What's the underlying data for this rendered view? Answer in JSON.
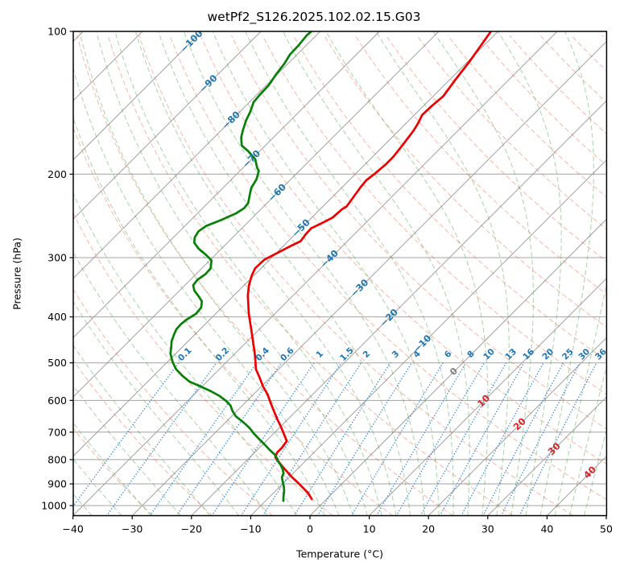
{
  "chart_data": {
    "type": "skewt-log-p",
    "title": "wetPf2_S126.2025.102.02.15.G03",
    "xlabel": "Temperature (°C)",
    "ylabel": "Pressure (hPa)",
    "xlim": [
      -40,
      50
    ],
    "ylim": [
      1050,
      100
    ],
    "skew_deg": 45,
    "grid": true,
    "x_ticks": [
      {
        "value": -40,
        "label": "−40"
      },
      {
        "value": -30,
        "label": "−30"
      },
      {
        "value": -20,
        "label": "−20"
      },
      {
        "value": -10,
        "label": "−10"
      },
      {
        "value": 0,
        "label": "0"
      },
      {
        "value": 10,
        "label": "10"
      },
      {
        "value": 20,
        "label": "20"
      },
      {
        "value": 30,
        "label": "30"
      },
      {
        "value": 40,
        "label": "40"
      },
      {
        "value": 50,
        "label": "50"
      }
    ],
    "y_ticks": [
      {
        "value": 100,
        "label": "100"
      },
      {
        "value": 200,
        "label": "200"
      },
      {
        "value": 300,
        "label": "300"
      },
      {
        "value": 400,
        "label": "400"
      },
      {
        "value": 500,
        "label": "500"
      },
      {
        "value": 600,
        "label": "600"
      },
      {
        "value": 700,
        "label": "700"
      },
      {
        "value": 800,
        "label": "800"
      },
      {
        "value": 900,
        "label": "900"
      },
      {
        "value": 1000,
        "label": "1000"
      }
    ],
    "isotherms": {
      "t_start": -130,
      "t_end": 60,
      "t_step": 10,
      "color": "#a0a0a0",
      "labels": [
        {
          "t": -100,
          "p": 105,
          "label": "−100",
          "color": "#1f77b4"
        },
        {
          "t": -90,
          "p": 129,
          "label": "−90",
          "color": "#1f77b4"
        },
        {
          "t": -80,
          "p": 154,
          "label": "−80",
          "color": "#1f77b4"
        },
        {
          "t": -70,
          "p": 186,
          "label": "−70",
          "color": "#1f77b4"
        },
        {
          "t": -60,
          "p": 219,
          "label": "−60",
          "color": "#1f77b4"
        },
        {
          "t": -50,
          "p": 260,
          "label": "−50",
          "color": "#1f77b4"
        },
        {
          "t": -40,
          "p": 302,
          "label": "−40",
          "color": "#1f77b4"
        },
        {
          "t": -30,
          "p": 348,
          "label": "−30",
          "color": "#1f77b4"
        },
        {
          "t": -20,
          "p": 402,
          "label": "−20",
          "color": "#1f77b4"
        },
        {
          "t": -10,
          "p": 456,
          "label": "−10",
          "color": "#1f77b4"
        },
        {
          "t": 0,
          "p": 522,
          "label": "0",
          "color": "#808080"
        },
        {
          "t": 10,
          "p": 602,
          "label": "10",
          "color": "#d62728"
        },
        {
          "t": 20,
          "p": 674,
          "label": "20",
          "color": "#d62728"
        },
        {
          "t": 30,
          "p": 760,
          "label": "30",
          "color": "#d62728"
        },
        {
          "t": 40,
          "p": 852,
          "label": "40",
          "color": "#d62728"
        }
      ]
    },
    "dry_adiabats": {
      "theta_start": -30,
      "theta_end": 220,
      "theta_step": 10,
      "color": "rgba(237,95,62,0.42)"
    },
    "moist_adiabats": {
      "t0": [
        -40,
        -35,
        -30,
        -25,
        -20,
        -15,
        -10,
        -5,
        0,
        2.5,
        5,
        7.5,
        10,
        12.5,
        15,
        17.5,
        20,
        22.5,
        25,
        27.5,
        30,
        32.5,
        35,
        37.5,
        40,
        42.5,
        45
      ],
      "color": "rgba(66,158,66,0.42)"
    },
    "mixing_lines": {
      "values": [
        0.1,
        0.2,
        0.4,
        0.6,
        1,
        1.5,
        2,
        3,
        4,
        6,
        8,
        10,
        13,
        16,
        20,
        25,
        30,
        36
      ],
      "labels": [
        "0.1",
        "0.2",
        "0.4",
        "0.6",
        "1",
        "1.5",
        "2",
        "3",
        "4",
        "6",
        "8",
        "10",
        "13",
        "16",
        "20",
        "25",
        "30",
        "36"
      ],
      "p_bottom": 1050,
      "p_top": 500,
      "label_p": 480,
      "color": "#4592d2",
      "label_color": "#1f77b4"
    },
    "temperature_profile": {
      "name": "temperature",
      "color": "#ee0000",
      "points": [
        [
          100,
          -51.2
        ],
        [
          106,
          -50.6
        ],
        [
          116,
          -49.7
        ],
        [
          127,
          -49.0
        ],
        [
          137,
          -48.3
        ],
        [
          144,
          -48.6
        ],
        [
          150,
          -48.7
        ],
        [
          156,
          -48.0
        ],
        [
          162,
          -47.5
        ],
        [
          174,
          -46.9
        ],
        [
          184,
          -46.5
        ],
        [
          191,
          -46.5
        ],
        [
          200,
          -46.8
        ],
        [
          206,
          -47.1
        ],
        [
          213,
          -46.9
        ],
        [
          222,
          -46.5
        ],
        [
          234,
          -46.0
        ],
        [
          237,
          -46.3
        ],
        [
          247,
          -46.5
        ],
        [
          254,
          -47.4
        ],
        [
          260,
          -48.3
        ],
        [
          268,
          -48.2
        ],
        [
          277,
          -47.9
        ],
        [
          283,
          -48.7
        ],
        [
          292,
          -49.7
        ],
        [
          303,
          -50.9
        ],
        [
          316,
          -51.0
        ],
        [
          328,
          -50.3
        ],
        [
          344,
          -49.1
        ],
        [
          361,
          -47.6
        ],
        [
          376,
          -46.1
        ],
        [
          394,
          -44.4
        ],
        [
          413,
          -42.5
        ],
        [
          432,
          -40.7
        ],
        [
          452,
          -38.9
        ],
        [
          474,
          -37.0
        ],
        [
          493,
          -35.5
        ],
        [
          515,
          -33.9
        ],
        [
          535,
          -32.0
        ],
        [
          561,
          -29.7
        ],
        [
          583,
          -27.6
        ],
        [
          607,
          -25.7
        ],
        [
          631,
          -23.8
        ],
        [
          656,
          -21.9
        ],
        [
          682,
          -19.9
        ],
        [
          709,
          -18.0
        ],
        [
          731,
          -16.5
        ],
        [
          755,
          -16.2
        ],
        [
          773,
          -16.2
        ],
        [
          791,
          -15.7
        ],
        [
          816,
          -13.8
        ],
        [
          839,
          -12.0
        ],
        [
          869,
          -9.7
        ],
        [
          896,
          -7.5
        ],
        [
          921,
          -5.6
        ],
        [
          943,
          -4.0
        ],
        [
          969,
          -2.5
        ]
      ]
    },
    "dewpoint_profile": {
      "name": "dewpoint",
      "color": "#068006",
      "points": [
        [
          100,
          -81.5
        ],
        [
          102,
          -81.6
        ],
        [
          107,
          -81.3
        ],
        [
          112,
          -81.2
        ],
        [
          117,
          -80.6
        ],
        [
          123,
          -80.2
        ],
        [
          130,
          -79.6
        ],
        [
          136,
          -79.5
        ],
        [
          141,
          -79.3
        ],
        [
          148,
          -78.2
        ],
        [
          154,
          -77.5
        ],
        [
          162,
          -76.3
        ],
        [
          167,
          -75.5
        ],
        [
          174,
          -74.0
        ],
        [
          179,
          -71.9
        ],
        [
          186,
          -69.4
        ],
        [
          194,
          -67.6
        ],
        [
          197,
          -66.8
        ],
        [
          205,
          -65.8
        ],
        [
          214,
          -65.2
        ],
        [
          222,
          -64.2
        ],
        [
          230,
          -63.2
        ],
        [
          236,
          -63.0
        ],
        [
          242,
          -63.5
        ],
        [
          250,
          -64.9
        ],
        [
          257,
          -66.4
        ],
        [
          264,
          -66.8
        ],
        [
          272,
          -66.4
        ],
        [
          279,
          -65.6
        ],
        [
          287,
          -63.9
        ],
        [
          295,
          -61.8
        ],
        [
          304,
          -59.7
        ],
        [
          316,
          -58.5
        ],
        [
          325,
          -58.4
        ],
        [
          334,
          -58.8
        ],
        [
          343,
          -58.6
        ],
        [
          352,
          -57.5
        ],
        [
          362,
          -55.8
        ],
        [
          371,
          -54.4
        ],
        [
          382,
          -53.5
        ],
        [
          394,
          -53.3
        ],
        [
          405,
          -53.9
        ],
        [
          414,
          -54.1
        ],
        [
          425,
          -54.0
        ],
        [
          436,
          -53.5
        ],
        [
          450,
          -52.8
        ],
        [
          464,
          -51.8
        ],
        [
          478,
          -50.9
        ],
        [
          498,
          -49.1
        ],
        [
          515,
          -47.4
        ],
        [
          532,
          -45.2
        ],
        [
          548,
          -42.9
        ],
        [
          559,
          -40.6
        ],
        [
          574,
          -37.7
        ],
        [
          587,
          -35.5
        ],
        [
          601,
          -33.6
        ],
        [
          615,
          -32.0
        ],
        [
          631,
          -30.8
        ],
        [
          648,
          -29.3
        ],
        [
          669,
          -26.8
        ],
        [
          687,
          -24.9
        ],
        [
          704,
          -23.4
        ],
        [
          724,
          -21.5
        ],
        [
          744,
          -19.6
        ],
        [
          762,
          -18.0
        ],
        [
          779,
          -16.4
        ],
        [
          794,
          -15.3
        ],
        [
          806,
          -14.6
        ],
        [
          821,
          -13.5
        ],
        [
          839,
          -12.4
        ],
        [
          855,
          -11.6
        ],
        [
          872,
          -11.2
        ],
        [
          889,
          -10.4
        ],
        [
          910,
          -9.4
        ],
        [
          932,
          -8.5
        ],
        [
          954,
          -7.8
        ],
        [
          977,
          -7.0
        ]
      ]
    }
  }
}
